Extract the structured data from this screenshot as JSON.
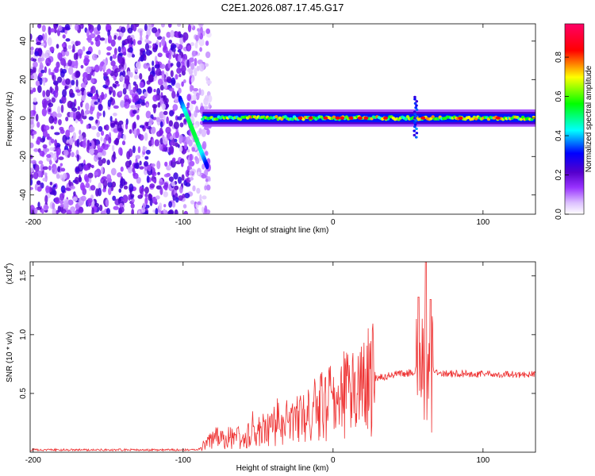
{
  "title": "C2E1.2026.087.17.45.G17",
  "chart_data": [
    {
      "type": "heatmap",
      "name": "spectrogram",
      "xlabel": "Height of straight line (km)",
      "ylabel": "Frequency (Hz)",
      "xlim": [
        -202,
        135
      ],
      "ylim": [
        -50,
        49
      ],
      "xticks": [
        -200,
        -100,
        0,
        100
      ],
      "xtick_labels": [
        "-200",
        "-100",
        "0",
        "100"
      ],
      "yticks": [
        -40,
        -20,
        0,
        20,
        40
      ],
      "ytick_labels": [
        "-40",
        "-20",
        "0",
        "20",
        "40"
      ],
      "colorbar": {
        "label": "Normalized spectral amplitude",
        "range": [
          0,
          0.97
        ],
        "ticks": [
          0.0,
          0.2,
          0.4,
          0.6,
          0.8
        ],
        "tick_labels": [
          "0.0",
          "0.2",
          "0.4",
          "0.6",
          "0.8"
        ],
        "colors": [
          "#ffffff",
          "#cc99ff",
          "#6600cc",
          "#0000ff",
          "#00ffff",
          "#00ff00",
          "#ffff00",
          "#ff0000",
          "#ff0066"
        ]
      },
      "features": {
        "noise_region_km": [
          -202,
          -87
        ],
        "carrier_start_km": -87,
        "carrier_frequency_hz": 0,
        "chirp_km": [
          -102,
          -84
        ],
        "chirp_freq_hz": [
          10,
          -25
        ],
        "disturbance_km": 55
      }
    },
    {
      "type": "line",
      "name": "snr",
      "xlabel": "Height of straight line (km)",
      "ylabel": "SNR (10 * v/v)",
      "scale_label": "(x10",
      "scale_exp": "4",
      "xlim": [
        -202,
        135
      ],
      "ylim": [
        0,
        1.62
      ],
      "xticks": [
        -200,
        -100,
        0,
        100
      ],
      "xtick_labels": [
        "-200",
        "-100",
        "0",
        "100"
      ],
      "yticks": [
        0.5,
        1.0,
        1.5
      ],
      "ytick_labels": [
        "0.5",
        "1.0",
        "1.5"
      ],
      "color": "#ee3333",
      "series_profile": [
        {
          "x": -202,
          "y": 0.02
        },
        {
          "x": -90,
          "y": 0.02
        },
        {
          "x": -80,
          "y": 0.12
        },
        {
          "x": -60,
          "y": 0.12
        },
        {
          "x": -45,
          "y": 0.2
        },
        {
          "x": -20,
          "y": 0.3
        },
        {
          "x": 0,
          "y": 0.43
        },
        {
          "x": 20,
          "y": 0.6
        },
        {
          "x": 40,
          "y": 0.66
        },
        {
          "x": 55,
          "y": 0.68
        },
        {
          "x": 70,
          "y": 0.67
        },
        {
          "x": 135,
          "y": 0.66
        }
      ],
      "peaks": [
        {
          "x": 57,
          "y": 1.32
        },
        {
          "x": 62,
          "y": 1.62
        },
        {
          "x": 65,
          "y": 1.3
        }
      ]
    }
  ]
}
